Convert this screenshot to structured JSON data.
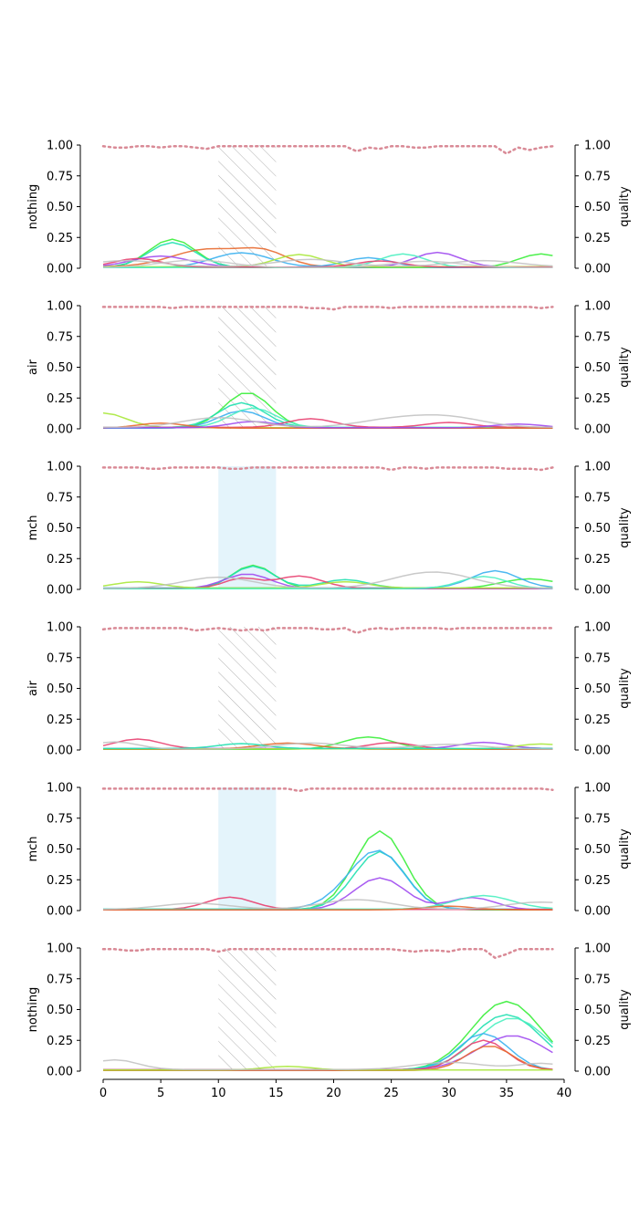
{
  "chart_data": {
    "type": "line",
    "x_ticks": [
      "0",
      "5",
      "10",
      "15",
      "20",
      "25",
      "30",
      "35",
      "40"
    ],
    "xlim": [
      0,
      40
    ],
    "y_ticks": [
      "0.00",
      "0.25",
      "0.50",
      "0.75",
      "1.00"
    ],
    "ylim": [
      0,
      1
    ],
    "right_ylabel": "quality",
    "quality_color": "#d98a96",
    "hatch_color": "#b0b0b0",
    "span_color": "#e4f4fb",
    "panels": [
      {
        "ylabel": "nothing",
        "highlight": {
          "x_start": 10,
          "x_end": 15,
          "style": "hatch"
        },
        "quality": [
          0.99,
          0.98,
          0.98,
          0.99,
          0.99,
          0.98,
          0.99,
          0.99,
          0.98,
          0.97,
          0.99,
          0.99,
          0.99,
          0.99,
          0.99,
          0.99,
          0.99,
          0.99,
          0.99,
          0.99,
          0.99,
          0.99,
          0.95,
          0.98,
          0.97,
          0.99,
          0.99,
          0.98,
          0.98,
          0.99,
          0.99,
          0.99,
          0.99,
          0.99,
          0.99,
          0.93,
          0.98,
          0.96,
          0.98,
          0.99
        ],
        "series": [
          {
            "color": "#3aee3a",
            "peaks": [
              [
                6,
                0.23,
                2.0
              ],
              [
                38,
                0.11,
                2.0
              ]
            ]
          },
          {
            "color": "#1fe0b0",
            "peaks": [
              [
                6,
                0.2,
                2.0
              ]
            ]
          },
          {
            "color": "#e86a30",
            "peaks": [
              [
                9,
                0.14,
                3.0
              ],
              [
                14,
                0.11,
                2.0
              ]
            ]
          },
          {
            "color": "#3ab0f0",
            "peaks": [
              [
                12,
                0.12,
                2.5
              ],
              [
                23,
                0.08,
                2.0
              ]
            ]
          },
          {
            "color": "#a04af0",
            "peaks": [
              [
                5,
                0.09,
                2.5
              ],
              [
                29,
                0.12,
                2.0
              ]
            ]
          },
          {
            "color": "#a8e83a",
            "peaks": [
              [
                17,
                0.1,
                2.0
              ]
            ]
          },
          {
            "color": "#4af0c0",
            "peaks": [
              [
                26,
                0.11,
                2.0
              ]
            ]
          },
          {
            "color": "#e84070",
            "peaks": [
              [
                3,
                0.07,
                2.0
              ],
              [
                24,
                0.05,
                2.0
              ]
            ]
          },
          {
            "color": "#c0c0c0",
            "peaks": [
              [
                2,
                0.05,
                3.0
              ],
              [
                18,
                0.06,
                3.0
              ],
              [
                33,
                0.05,
                3.0
              ]
            ]
          },
          {
            "color": "#c8c8c8",
            "peaks": [
              [
                8,
                0.06,
                3.0
              ],
              [
                28,
                0.05,
                3.0
              ]
            ]
          }
        ]
      },
      {
        "ylabel": "air",
        "highlight": {
          "x_start": 10,
          "x_end": 15,
          "style": "hatch"
        },
        "quality": [
          0.99,
          0.99,
          0.99,
          0.99,
          0.99,
          0.99,
          0.98,
          0.99,
          0.99,
          0.99,
          0.99,
          0.99,
          0.99,
          0.99,
          0.99,
          0.99,
          0.99,
          0.99,
          0.98,
          0.98,
          0.97,
          0.99,
          0.99,
          0.99,
          0.99,
          0.98,
          0.99,
          0.99,
          0.99,
          0.99,
          0.99,
          0.99,
          0.99,
          0.99,
          0.99,
          0.99,
          0.99,
          0.99,
          0.98,
          0.99
        ],
        "series": [
          {
            "color": "#3aee3a",
            "peaks": [
              [
                12.5,
                0.29,
                2.0
              ]
            ]
          },
          {
            "color": "#a8e83a",
            "peaks": [
              [
                0,
                0.12,
                2.0
              ]
            ]
          },
          {
            "color": "#1fe0b0",
            "peaks": [
              [
                12,
                0.2,
                2.0
              ]
            ]
          },
          {
            "color": "#3ab0f0",
            "peaks": [
              [
                12,
                0.14,
                2.0
              ]
            ]
          },
          {
            "color": "#4af0c0",
            "peaks": [
              [
                13,
                0.16,
                2.0
              ]
            ]
          },
          {
            "color": "#e84070",
            "peaks": [
              [
                18,
                0.07,
                2.0
              ],
              [
                30,
                0.04,
                2.0
              ]
            ]
          },
          {
            "color": "#e86a30",
            "peaks": [
              [
                5,
                0.04,
                2.0
              ]
            ]
          },
          {
            "color": "#a04af0",
            "peaks": [
              [
                13,
                0.05,
                2.0
              ],
              [
                36,
                0.03,
                2.0
              ]
            ]
          },
          {
            "color": "#c0c0c0",
            "peaks": [
              [
                10,
                0.08,
                3.0
              ],
              [
                25,
                0.06,
                3.0
              ],
              [
                30,
                0.08,
                3.0
              ]
            ]
          }
        ]
      },
      {
        "ylabel": "mch",
        "highlight": {
          "x_start": 10,
          "x_end": 15,
          "style": "span"
        },
        "quality": [
          0.99,
          0.99,
          0.99,
          0.99,
          0.98,
          0.98,
          0.99,
          0.99,
          0.99,
          0.99,
          0.99,
          0.98,
          0.98,
          0.99,
          0.99,
          0.99,
          0.99,
          0.99,
          0.99,
          0.99,
          0.99,
          0.99,
          0.99,
          0.99,
          0.99,
          0.97,
          0.99,
          0.99,
          0.98,
          0.99,
          0.99,
          0.99,
          0.99,
          0.99,
          0.99,
          0.98,
          0.98,
          0.98,
          0.97,
          0.99
        ],
        "series": [
          {
            "color": "#3aee3a",
            "peaks": [
              [
                13,
                0.19,
                1.8
              ],
              [
                37,
                0.08,
                2.5
              ]
            ]
          },
          {
            "color": "#1fe0b0",
            "peaks": [
              [
                13,
                0.18,
                1.8
              ],
              [
                21,
                0.07,
                2.0
              ]
            ]
          },
          {
            "color": "#3ab0f0",
            "peaks": [
              [
                34,
                0.14,
                2.0
              ]
            ]
          },
          {
            "color": "#a04af0",
            "peaks": [
              [
                12.5,
                0.12,
                2.0
              ]
            ]
          },
          {
            "color": "#e84070",
            "peaks": [
              [
                17,
                0.1,
                2.0
              ],
              [
                12,
                0.08,
                1.5
              ]
            ]
          },
          {
            "color": "#a8e83a",
            "peaks": [
              [
                3,
                0.05,
                2.0
              ],
              [
                21,
                0.05,
                2.0
              ]
            ]
          },
          {
            "color": "#4af0c0",
            "peaks": [
              [
                33,
                0.1,
                2.0
              ]
            ]
          },
          {
            "color": "#c0c0c0",
            "peaks": [
              [
                10,
                0.09,
                3.0
              ],
              [
                27,
                0.07,
                3.0
              ],
              [
                30,
                0.08,
                3.0
              ]
            ]
          }
        ]
      },
      {
        "ylabel": "air",
        "highlight": {
          "x_start": 10,
          "x_end": 15,
          "style": "hatch"
        },
        "quality": [
          0.98,
          0.99,
          0.99,
          0.99,
          0.99,
          0.99,
          0.99,
          0.99,
          0.97,
          0.98,
          0.99,
          0.98,
          0.97,
          0.98,
          0.97,
          0.99,
          0.99,
          0.99,
          0.99,
          0.98,
          0.98,
          0.99,
          0.95,
          0.98,
          0.99,
          0.98,
          0.99,
          0.99,
          0.99,
          0.99,
          0.98,
          0.99,
          0.99,
          0.99,
          0.99,
          0.99,
          0.99,
          0.99,
          0.99,
          0.99
        ],
        "series": [
          {
            "color": "#3aee3a",
            "peaks": [
              [
                23,
                0.1,
                2.2
              ]
            ]
          },
          {
            "color": "#e84070",
            "peaks": [
              [
                3,
                0.08,
                2.0
              ],
              [
                25,
                0.05,
                2.0
              ]
            ]
          },
          {
            "color": "#a04af0",
            "peaks": [
              [
                33,
                0.05,
                2.0
              ]
            ]
          },
          {
            "color": "#e86a30",
            "peaks": [
              [
                16,
                0.05,
                2.5
              ]
            ]
          },
          {
            "color": "#a8e83a",
            "peaks": [
              [
                38,
                0.04,
                2.0
              ]
            ]
          },
          {
            "color": "#1fe0b0",
            "peaks": [
              [
                12,
                0.04,
                2.0
              ]
            ]
          },
          {
            "color": "#c0c0c0",
            "peaks": [
              [
                1,
                0.06,
                2.0
              ],
              [
                18,
                0.05,
                3.0
              ],
              [
                30,
                0.04,
                3.0
              ]
            ]
          }
        ]
      },
      {
        "ylabel": "mch",
        "highlight": {
          "x_start": 10,
          "x_end": 15,
          "style": "span"
        },
        "quality": [
          0.99,
          0.99,
          0.99,
          0.99,
          0.99,
          0.99,
          0.99,
          0.99,
          0.99,
          0.99,
          0.99,
          0.99,
          0.99,
          0.99,
          0.99,
          0.99,
          0.99,
          0.97,
          0.99,
          0.99,
          0.99,
          0.99,
          0.99,
          0.99,
          0.99,
          0.99,
          0.99,
          0.99,
          0.99,
          0.99,
          0.99,
          0.99,
          0.99,
          0.99,
          0.99,
          0.99,
          0.99,
          0.99,
          0.99,
          0.98
        ],
        "series": [
          {
            "color": "#3aee3a",
            "peaks": [
              [
                24,
                0.64,
                2.2
              ]
            ]
          },
          {
            "color": "#1fe0b0",
            "peaks": [
              [
                24,
                0.47,
                2.2
              ]
            ]
          },
          {
            "color": "#3ab0f0",
            "peaks": [
              [
                24,
                0.45,
                2.2
              ],
              [
                21,
                0.08,
                2.0
              ]
            ]
          },
          {
            "color": "#a04af0",
            "peaks": [
              [
                24,
                0.26,
                2.2
              ],
              [
                32,
                0.1,
                2.0
              ]
            ]
          },
          {
            "color": "#e84070",
            "peaks": [
              [
                11,
                0.1,
                2.0
              ]
            ]
          },
          {
            "color": "#4af0c0",
            "peaks": [
              [
                33,
                0.11,
                2.5
              ]
            ]
          },
          {
            "color": "#e86a30",
            "peaks": [
              [
                30,
                0.03,
                2.0
              ]
            ]
          },
          {
            "color": "#c0c0c0",
            "peaks": [
              [
                8,
                0.05,
                3.0
              ],
              [
                22,
                0.08,
                3.0
              ],
              [
                38,
                0.06,
                3.0
              ]
            ]
          }
        ]
      },
      {
        "ylabel": "nothing",
        "highlight": {
          "x_start": 10,
          "x_end": 15,
          "style": "hatch"
        },
        "quality": [
          0.99,
          0.99,
          0.98,
          0.98,
          0.99,
          0.99,
          0.99,
          0.99,
          0.99,
          0.99,
          0.97,
          0.99,
          0.99,
          0.99,
          0.99,
          0.99,
          0.99,
          0.99,
          0.99,
          0.99,
          0.99,
          0.99,
          0.99,
          0.99,
          0.99,
          0.99,
          0.98,
          0.97,
          0.98,
          0.98,
          0.97,
          0.99,
          0.99,
          0.99,
          0.92,
          0.95,
          0.99,
          0.99,
          0.99,
          0.99
        ],
        "series": [
          {
            "color": "#3aee3a",
            "peaks": [
              [
                35,
                0.56,
                3.0
              ]
            ]
          },
          {
            "color": "#1fe0b0",
            "peaks": [
              [
                35,
                0.45,
                3.0
              ]
            ]
          },
          {
            "color": "#4af0c0",
            "peaks": [
              [
                35.5,
                0.42,
                3.0
              ]
            ]
          },
          {
            "color": "#3ab0f0",
            "peaks": [
              [
                33,
                0.3,
                2.2
              ]
            ]
          },
          {
            "color": "#a04af0",
            "peaks": [
              [
                35.5,
                0.28,
                3.0
              ]
            ]
          },
          {
            "color": "#e84070",
            "peaks": [
              [
                33,
                0.24,
                2.0
              ]
            ]
          },
          {
            "color": "#e86a30",
            "peaks": [
              [
                33.5,
                0.2,
                2.0
              ]
            ]
          },
          {
            "color": "#a8e83a",
            "peaks": [
              [
                16,
                0.03,
                2.0
              ]
            ]
          },
          {
            "color": "#c0c0c0",
            "peaks": [
              [
                1,
                0.08,
                2.0
              ],
              [
                30,
                0.06,
                3.0
              ],
              [
                38,
                0.05,
                2.0
              ]
            ]
          }
        ]
      }
    ]
  }
}
